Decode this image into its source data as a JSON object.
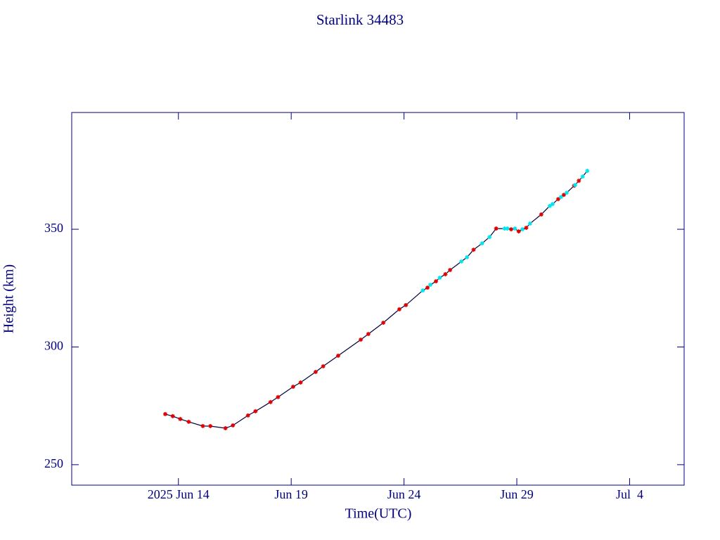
{
  "chart_data": {
    "type": "line",
    "title": "Starlink 34483",
    "x_label": "Time(UTC)",
    "y_label": "Height (km)",
    "line_color": "#000040",
    "x": [
      "2025-06-13T10:00Z",
      "2025-06-13T18:00Z",
      "2025-06-14T02:00Z",
      "2025-06-14T11:00Z",
      "2025-06-15T02:00Z",
      "2025-06-15T10:00Z",
      "2025-06-16T02:00Z",
      "2025-06-16T10:00Z",
      "2025-06-17T02:00Z",
      "2025-06-17T10:00Z",
      "2025-06-18T02:00Z",
      "2025-06-18T10:00Z",
      "2025-06-19T02:00Z",
      "2025-06-19T10:00Z",
      "2025-06-20T02:00Z",
      "2025-06-20T10:00Z",
      "2025-06-21T02:00Z",
      "2025-06-22T02:00Z",
      "2025-06-22T10:00Z",
      "2025-06-23T02:00Z",
      "2025-06-23T19:00Z",
      "2025-06-24T02:00Z",
      "2025-06-24T20:00Z",
      "2025-06-25T01:00Z",
      "2025-06-25T04:00Z",
      "2025-06-25T10:00Z",
      "2025-06-25T14:00Z",
      "2025-06-25T20:00Z",
      "2025-06-26T01:00Z",
      "2025-06-26T13:00Z",
      "2025-06-26T19:00Z",
      "2025-06-27T02:00Z",
      "2025-06-27T11:00Z",
      "2025-06-27T19:00Z",
      "2025-06-28T02:00Z",
      "2025-06-28T11:00Z",
      "2025-06-28T14:00Z",
      "2025-06-28T18:00Z",
      "2025-06-28T22:00Z",
      "2025-06-29T02:00Z",
      "2025-06-29T06:00Z",
      "2025-06-29T10:00Z",
      "2025-06-29T14:00Z",
      "2025-06-30T02:00Z",
      "2025-06-30T11:00Z",
      "2025-06-30T14:00Z",
      "2025-06-30T20:00Z",
      "2025-06-30T23:00Z",
      "2025-07-01T02:00Z",
      "2025-07-01T05:00Z",
      "2025-07-01T13:00Z",
      "2025-07-01T14:00Z",
      "2025-07-01T18:00Z",
      "2025-07-01T22:00Z",
      "2025-07-02T03:00Z"
    ],
    "values": [
      271.5,
      270.6,
      269.4,
      268.2,
      266.4,
      266.4,
      265.5,
      266.7,
      270.9,
      272.7,
      276.6,
      278.7,
      283.1,
      284.9,
      289.4,
      291.8,
      296.3,
      303.1,
      305.5,
      310.3,
      316.0,
      317.8,
      324.0,
      325.2,
      326.4,
      327.9,
      329.4,
      330.9,
      332.7,
      336.3,
      338.1,
      341.3,
      344.0,
      346.7,
      350.3,
      350.3,
      350.3,
      350.0,
      350.3,
      349.1,
      350.0,
      350.6,
      352.4,
      356.3,
      359.9,
      360.7,
      362.8,
      363.7,
      364.6,
      365.5,
      368.5,
      368.8,
      370.6,
      372.4,
      374.8
    ],
    "marker_colors": [
      "#e00000",
      "#e00000",
      "#e00000",
      "#e00000",
      "#e00000",
      "#e00000",
      "#e00000",
      "#e00000",
      "#e00000",
      "#e00000",
      "#e00000",
      "#e00000",
      "#e00000",
      "#e00000",
      "#e00000",
      "#e00000",
      "#e00000",
      "#e00000",
      "#e00000",
      "#e00000",
      "#e00000",
      "#e00000",
      "#00e5ee",
      "#e00000",
      "#00e5ee",
      "#e00000",
      "#00e5ee",
      "#e00000",
      "#e00000",
      "#00e5ee",
      "#00e5ee",
      "#e00000",
      "#00e5ee",
      "#00e5ee",
      "#e00000",
      "#00e5ee",
      "#00e5ee",
      "#e00000",
      "#00e5ee",
      "#e00000",
      "#00e5ee",
      "#e00000",
      "#00e5ee",
      "#e00000",
      "#00e5ee",
      "#00e5ee",
      "#e00000",
      "#00e5ee",
      "#e00000",
      "#00e5ee",
      "#e00000",
      "#00e5ee",
      "#e00000",
      "#00e5ee",
      "#00e5ee"
    ],
    "xlim": [
      "2025-06-09T06:30Z",
      "2025-07-06T10:00Z"
    ],
    "xticks": [
      {
        "value": "2025-06-14T00:00Z",
        "label": "2025 Jun 14"
      },
      {
        "value": "2025-06-19T00:00Z",
        "label": "Jun 19"
      },
      {
        "value": "2025-06-24T00:00Z",
        "label": "Jun 24"
      },
      {
        "value": "2025-06-29T00:00Z",
        "label": "Jun 29"
      },
      {
        "value": "2025-07-04T00:00Z",
        "label": "Jul  4"
      }
    ],
    "ylim": [
      241.3,
      399.6
    ],
    "yticks": [
      250,
      300,
      350
    ],
    "grid": false
  }
}
